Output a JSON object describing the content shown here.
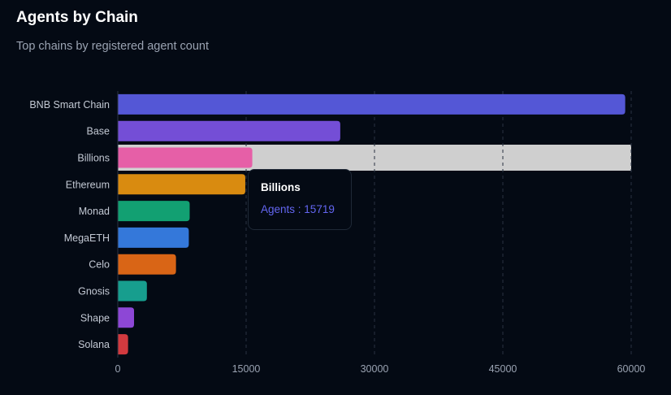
{
  "header": {
    "title": "Agents by Chain",
    "subtitle": "Top chains by registered agent count"
  },
  "tooltip": {
    "title": "Billions",
    "label": "Agents",
    "separator": " : ",
    "value": "15719",
    "color": "#6366f1"
  },
  "chart_data": {
    "type": "bar",
    "orientation": "horizontal",
    "title": "Agents by Chain",
    "subtitle": "Top chains by registered agent count",
    "series_name": "Agents",
    "categories": [
      "BNB Smart Chain",
      "Base",
      "Billions",
      "Ethereum",
      "Monad",
      "MegaETH",
      "Celo",
      "Gnosis",
      "Shape",
      "Solana"
    ],
    "values": [
      59300,
      26000,
      15719,
      14900,
      8400,
      8300,
      6800,
      3400,
      1900,
      1200
    ],
    "colors": [
      "#5457d6",
      "#744ed6",
      "#e65fa7",
      "#d98b10",
      "#12a072",
      "#3478da",
      "#d96516",
      "#179e8e",
      "#8d47d6",
      "#d23a3f"
    ],
    "xlim": [
      0,
      60000
    ],
    "xticks": [
      0,
      15000,
      30000,
      45000,
      60000
    ],
    "xtick_labels": [
      "0",
      "15000",
      "30000",
      "45000",
      "60000"
    ],
    "grid": "vertical dashed",
    "highlighted_category": "Billions"
  }
}
